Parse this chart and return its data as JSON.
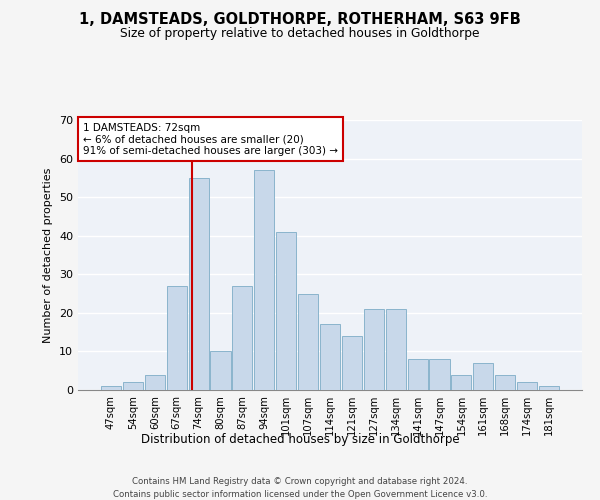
{
  "title": "1, DAMSTEADS, GOLDTHORPE, ROTHERHAM, S63 9FB",
  "subtitle": "Size of property relative to detached houses in Goldthorpe",
  "xlabel": "Distribution of detached houses by size in Goldthorpe",
  "ylabel": "Number of detached properties",
  "bar_color": "#c8d8ea",
  "bar_edge_color": "#8ab4cc",
  "background_color": "#eef2f8",
  "grid_color": "#d8dde8",
  "categories": [
    "47sqm",
    "54sqm",
    "60sqm",
    "67sqm",
    "74sqm",
    "80sqm",
    "87sqm",
    "94sqm",
    "101sqm",
    "107sqm",
    "114sqm",
    "121sqm",
    "127sqm",
    "134sqm",
    "141sqm",
    "147sqm",
    "154sqm",
    "161sqm",
    "168sqm",
    "174sqm",
    "181sqm"
  ],
  "values": [
    1,
    2,
    4,
    27,
    55,
    10,
    27,
    57,
    41,
    25,
    17,
    14,
    21,
    21,
    8,
    8,
    4,
    7,
    4,
    2,
    1
  ],
  "ylim": [
    0,
    70
  ],
  "yticks": [
    0,
    10,
    20,
    30,
    40,
    50,
    60,
    70
  ],
  "marker_label": "1 DAMSTEADS: 72sqm",
  "annotation_line1": "← 6% of detached houses are smaller (20)",
  "annotation_line2": "91% of semi-detached houses are larger (303) →",
  "footer_line1": "Contains HM Land Registry data © Crown copyright and database right 2024.",
  "footer_line2": "Contains public sector information licensed under the Open Government Licence v3.0.",
  "marker_color": "#cc0000",
  "box_edge_color": "#cc0000",
  "fig_bg": "#f5f5f5"
}
